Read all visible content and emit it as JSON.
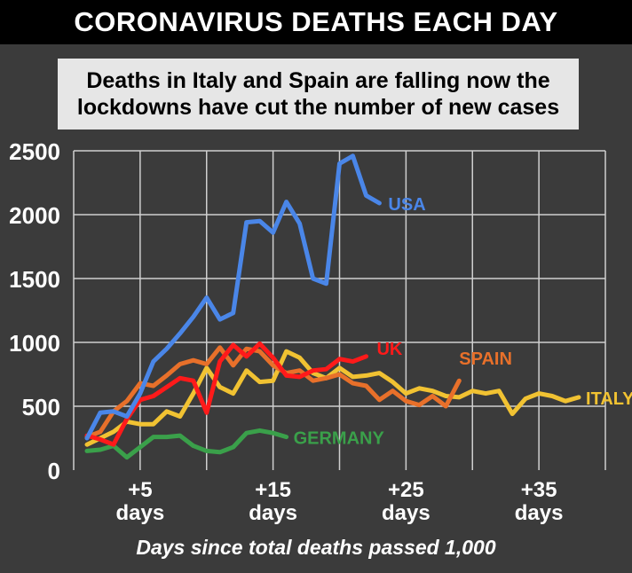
{
  "title": "CORONAVIRUS DEATHS EACH DAY",
  "subtitle": "Deaths in Italy and Spain are falling now the\nlockdowns have cut the number of new cases",
  "chart_data": {
    "type": "line",
    "title": "CORONAVIRUS DEATHS EACH DAY",
    "subtitle": "Deaths in Italy and Spain are falling now the lockdowns have cut the number of new cases",
    "xlabel": "Days since total deaths passed 1,000",
    "ylabel": "",
    "ylim": [
      0,
      2500
    ],
    "xlim": [
      0,
      40
    ],
    "yticks": [
      0,
      500,
      1000,
      1500,
      2000,
      2500
    ],
    "xticks": [
      {
        "x": 5,
        "line1": "+5",
        "line2": "days"
      },
      {
        "x": 15,
        "line1": "+15",
        "line2": "days"
      },
      {
        "x": 25,
        "line1": "+25",
        "line2": "days"
      },
      {
        "x": 35,
        "line1": "+35",
        "line2": "days"
      }
    ],
    "grid": true,
    "series": [
      {
        "name": "USA",
        "color": "#4a86e8",
        "x": [
          1,
          2,
          3,
          4,
          5,
          6,
          7,
          8,
          9,
          10,
          11,
          12,
          13,
          14,
          15,
          16,
          17,
          18,
          19,
          20,
          21,
          22,
          23
        ],
        "values": [
          250,
          450,
          460,
          420,
          600,
          850,
          950,
          1070,
          1200,
          1350,
          1180,
          1230,
          1940,
          1950,
          1860,
          2100,
          1930,
          1500,
          1460,
          2400,
          2460,
          2150,
          2090
        ]
      },
      {
        "name": "ITALY",
        "color": "#f1c232",
        "x": [
          1,
          2,
          3,
          4,
          5,
          6,
          7,
          8,
          9,
          10,
          11,
          12,
          13,
          14,
          15,
          16,
          17,
          18,
          19,
          20,
          21,
          22,
          23,
          24,
          25,
          26,
          27,
          28,
          29,
          30,
          31,
          32,
          33,
          34,
          35,
          36,
          37,
          38
        ],
        "values": [
          200,
          250,
          300,
          380,
          360,
          360,
          460,
          420,
          600,
          800,
          650,
          600,
          780,
          690,
          700,
          930,
          880,
          760,
          720,
          800,
          730,
          740,
          760,
          690,
          600,
          640,
          620,
          580,
          570,
          620,
          600,
          620,
          440,
          560,
          600,
          580,
          540,
          570
        ]
      },
      {
        "name": "SPAIN",
        "color": "#e8702a",
        "x": [
          1,
          2,
          3,
          4,
          5,
          6,
          7,
          8,
          9,
          10,
          11,
          12,
          13,
          14,
          15,
          16,
          17,
          18,
          19,
          20,
          21,
          22,
          23,
          24,
          25,
          26,
          27,
          28,
          29
        ],
        "values": [
          260,
          300,
          460,
          540,
          680,
          660,
          740,
          830,
          860,
          830,
          960,
          820,
          950,
          930,
          820,
          760,
          780,
          700,
          720,
          750,
          680,
          660,
          550,
          620,
          540,
          510,
          580,
          500,
          700
        ]
      },
      {
        "name": "UK",
        "color": "#ff1a1a",
        "x": [
          1,
          2,
          3,
          4,
          5,
          6,
          7,
          8,
          9,
          10,
          11,
          12,
          13,
          14,
          15,
          16,
          17,
          18,
          19,
          20,
          21,
          22
        ],
        "values": [
          270,
          240,
          200,
          400,
          550,
          580,
          650,
          720,
          700,
          450,
          850,
          980,
          890,
          990,
          880,
          740,
          730,
          780,
          790,
          870,
          850,
          890
        ]
      },
      {
        "name": "GERMANY",
        "color": "#3aa04a",
        "x": [
          1,
          2,
          3,
          4,
          5,
          6,
          7,
          8,
          9,
          10,
          11,
          12,
          13,
          14,
          15,
          16
        ],
        "values": [
          150,
          160,
          190,
          100,
          180,
          260,
          260,
          270,
          190,
          150,
          140,
          180,
          290,
          310,
          290,
          260
        ]
      }
    ]
  }
}
